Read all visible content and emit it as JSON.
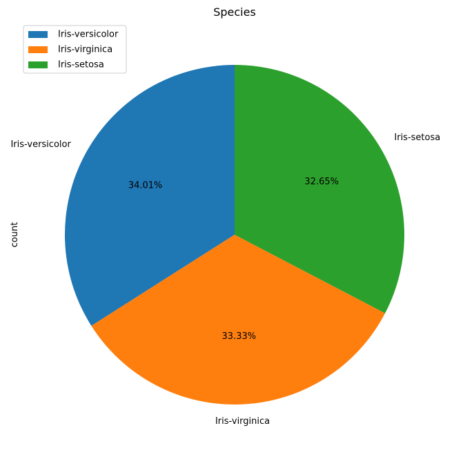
{
  "chart_data": {
    "type": "pie",
    "title": "Species",
    "ylabel": "count",
    "slices": [
      {
        "label": "Iris-versicolor",
        "value": 34.01,
        "pct_label": "34.01%",
        "color": "#1f77b4"
      },
      {
        "label": "Iris-virginica",
        "value": 33.33,
        "pct_label": "33.33%",
        "color": "#ff7f0e"
      },
      {
        "label": "Iris-setosa",
        "value": 32.65,
        "pct_label": "32.65%",
        "color": "#2ca02c"
      }
    ],
    "start_angle_deg": 90,
    "direction": "counterclockwise",
    "legend": {
      "placement": "top-left",
      "entries": [
        "Iris-versicolor",
        "Iris-virginica",
        "Iris-setosa"
      ]
    }
  }
}
